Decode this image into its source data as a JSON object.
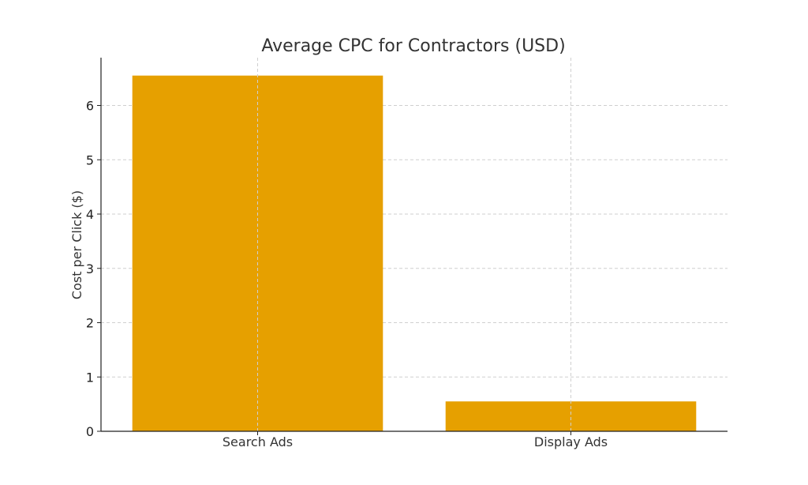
{
  "chart_data": {
    "type": "bar",
    "title": "Average CPC for Contractors (USD)",
    "xlabel": "",
    "ylabel": "Cost per Click ($)",
    "categories": [
      "Search Ads",
      "Display Ads"
    ],
    "values": [
      6.55,
      0.55
    ],
    "ylim": [
      0,
      6.88
    ],
    "yticks": [
      0,
      1,
      2,
      3,
      4,
      5,
      6
    ],
    "grid": true,
    "bar_color": "#E6A000",
    "grid_color": "#CFCFCF"
  }
}
